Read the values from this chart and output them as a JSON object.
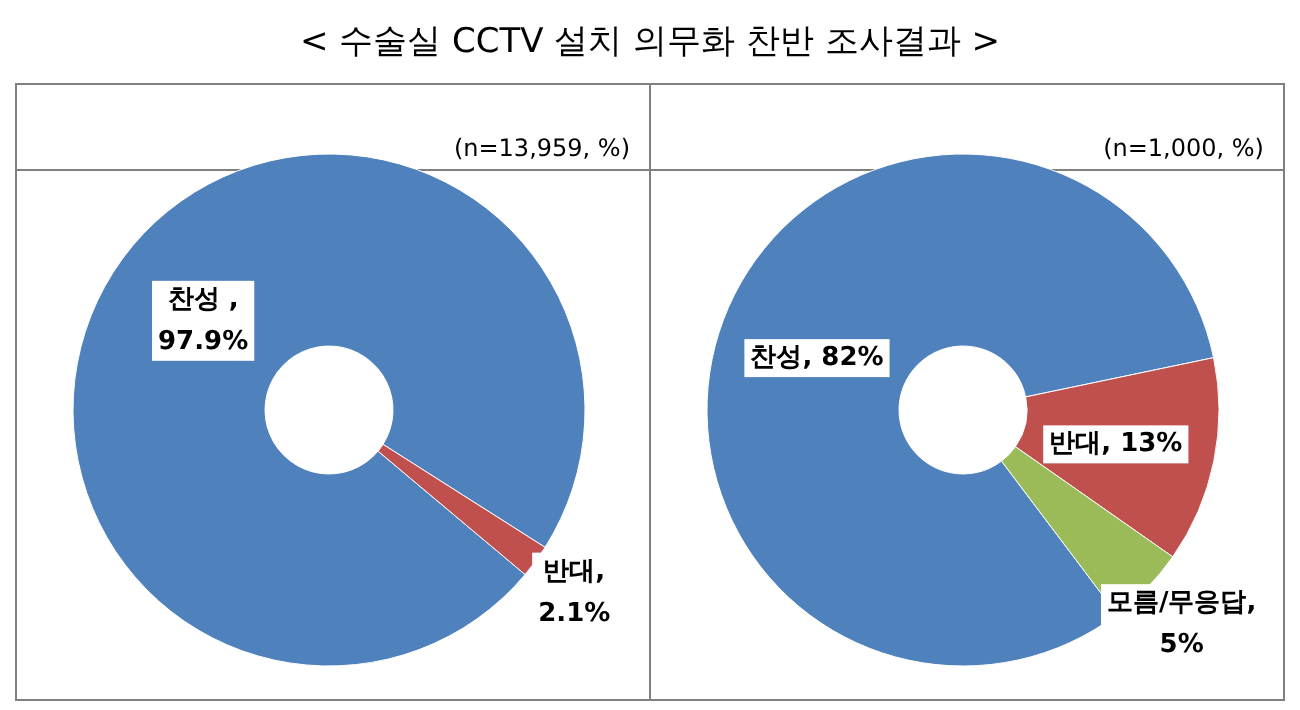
{
  "chart_data": [
    {
      "type": "donut",
      "title": "< 수술실 CCTV 설치 의무화 찬반 조사결과 >",
      "subtitle": "(n=13,959, %)",
      "categories": [
        "찬성",
        "반대"
      ],
      "values": [
        97.9,
        2.1
      ],
      "colors": [
        "#4f81bd",
        "#c0504d"
      ],
      "value_labels": [
        " ,\n97.9%",
        ",\n2.1%"
      ]
    },
    {
      "type": "donut",
      "subtitle": "(n=1,000, %)",
      "categories": [
        "찬성",
        "반대",
        "모름/무응답"
      ],
      "values": [
        82,
        13,
        5
      ],
      "colors": [
        "#4f81bd",
        "#c0504d",
        "#9bbb59"
      ],
      "value_labels": [
        ", 82%",
        ", 13%",
        ",\n5%"
      ]
    }
  ]
}
